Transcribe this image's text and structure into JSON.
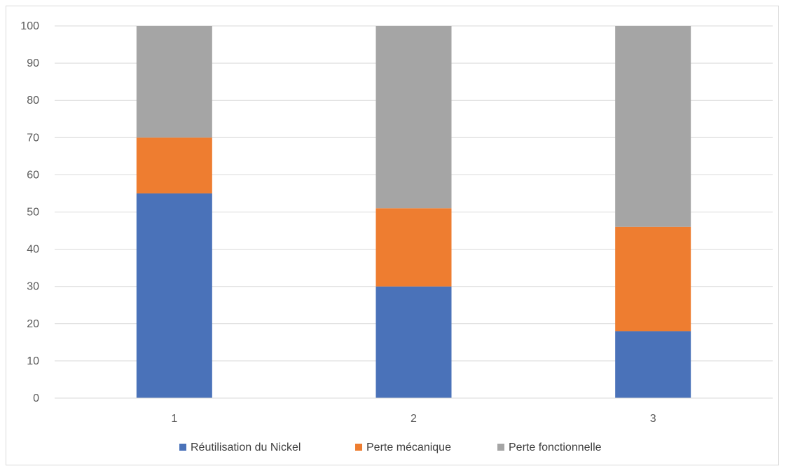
{
  "chart_data": {
    "type": "bar",
    "stacked": true,
    "categories": [
      "1",
      "2",
      "3"
    ],
    "series": [
      {
        "name": "Réutilisation du Nickel",
        "color": "#4a72b9",
        "values": [
          55,
          30,
          18
        ]
      },
      {
        "name": "Perte mécanique",
        "color": "#ee7d30",
        "values": [
          15,
          21,
          28
        ]
      },
      {
        "name": "Perte fonctionnelle",
        "color": "#a5a5a5",
        "values": [
          30,
          49,
          54
        ]
      }
    ],
    "ylim": [
      0,
      100
    ],
    "yticks": [
      0,
      10,
      20,
      30,
      40,
      50,
      60,
      70,
      80,
      90,
      100
    ],
    "grid": true,
    "legend_position": "bottom"
  }
}
